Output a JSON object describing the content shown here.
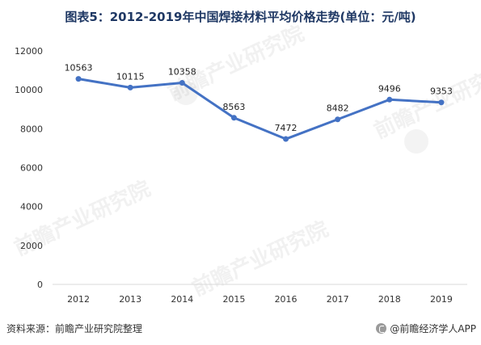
{
  "title": "图表5：2012-2019年中国焊接材料平均价格走势(单位：元/吨)",
  "source": "资料来源：前瞻产业研究院整理",
  "brand": "@前瞻经济学人APP",
  "watermark": "前瞻产业研究院",
  "colors": {
    "line": "#4472c4",
    "title": "#1f3864",
    "axis": "#d9d9d9",
    "text": "#333333"
  },
  "chart_data": {
    "type": "line",
    "categories": [
      "2012",
      "2013",
      "2014",
      "2015",
      "2016",
      "2017",
      "2018",
      "2019"
    ],
    "series": [
      {
        "values": [
          10563,
          10115,
          10358,
          8563,
          7472,
          8482,
          9496,
          9353
        ]
      }
    ],
    "ylim": [
      0,
      12000
    ],
    "yticks": [
      0,
      2000,
      4000,
      6000,
      8000,
      10000,
      12000
    ],
    "grid": false,
    "legend": "none",
    "title": "图表5：2012-2019年中国焊接材料平均价格走势(单位：元/吨)",
    "xlabel": "",
    "ylabel": ""
  }
}
